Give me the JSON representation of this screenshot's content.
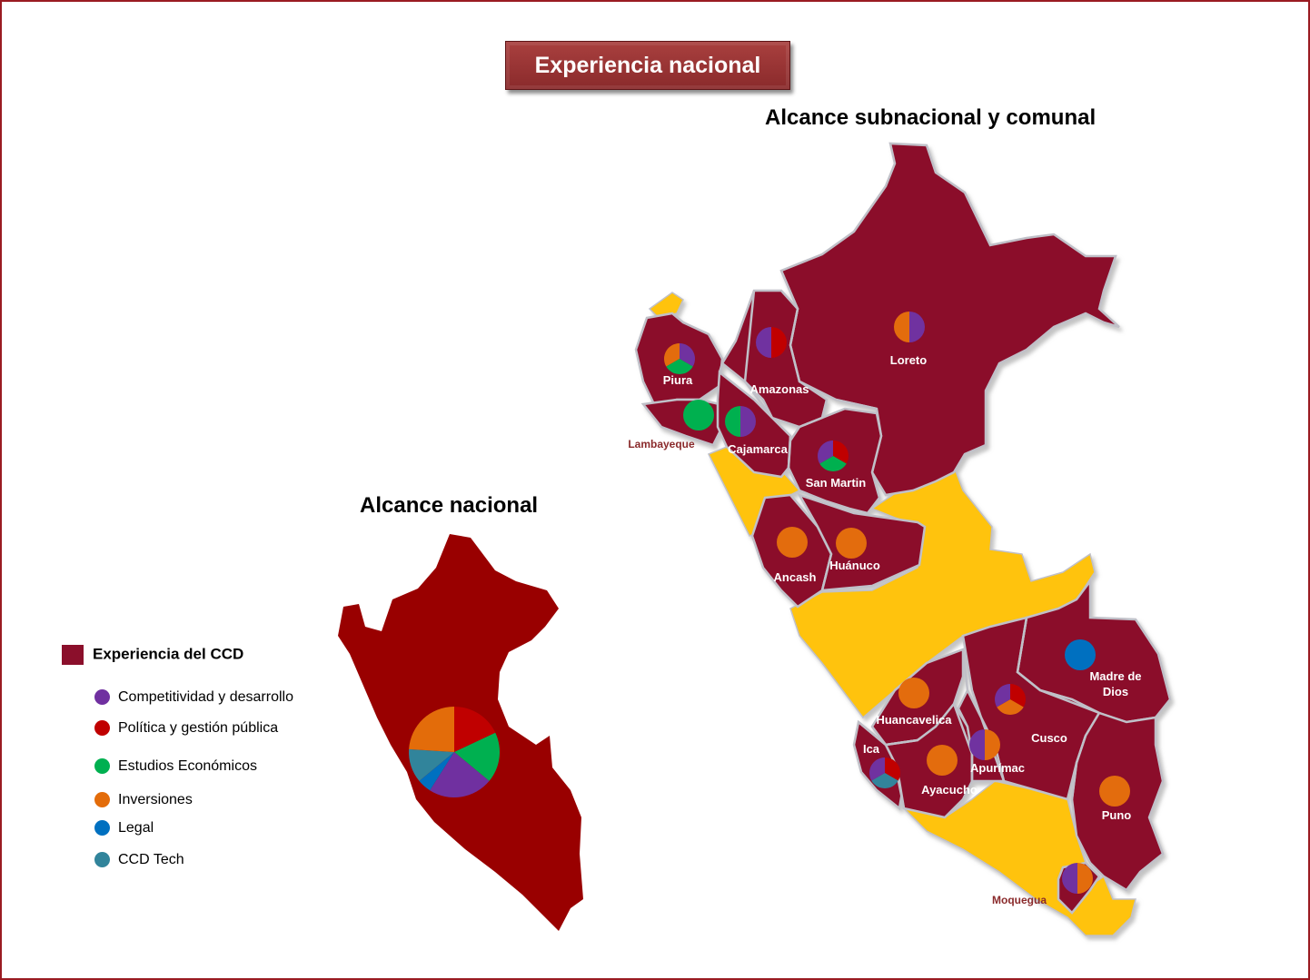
{
  "title": "Experiencia nacional",
  "heading_subnational": "Alcance subnacional y comunal",
  "heading_national": "Alcance nacional",
  "colors": {
    "ccd_region": "#8b0f2b",
    "other_region": "#ffc30a",
    "national_map": "#990000",
    "border": "#c0c0c8"
  },
  "legend": {
    "main_label": "Experiencia del CCD",
    "main_color": "#8b0f2b",
    "items": [
      {
        "label": "Competitividad y desarrollo",
        "color": "#7030a0"
      },
      {
        "label": "Política y gestión pública",
        "color": "#c00000"
      },
      {
        "label": "Estudios Económicos",
        "color": "#00b050"
      },
      {
        "label": "Inversiones",
        "color": "#e36c0a"
      },
      {
        "label": "Legal",
        "color": "#0070c0"
      },
      {
        "label": "CCD Tech",
        "color": "#31849b"
      }
    ]
  },
  "regions": [
    {
      "name": "Loreto",
      "areas": [
        "Competitividad y desarrollo",
        "Inversiones"
      ]
    },
    {
      "name": "Piura",
      "areas": [
        "Competitividad y desarrollo",
        "Estudios Económicos",
        "Inversiones"
      ]
    },
    {
      "name": "Amazonas",
      "areas": [
        "Política y gestión pública",
        "Competitividad y desarrollo"
      ]
    },
    {
      "name": "Lambayeque",
      "areas": [
        "Estudios Económicos"
      ]
    },
    {
      "name": "Cajamarca",
      "areas": [
        "Competitividad y desarrollo",
        "Estudios Económicos"
      ]
    },
    {
      "name": "San Martin",
      "areas": [
        "Política y gestión pública",
        "Estudios Económicos",
        "Competitividad y desarrollo"
      ]
    },
    {
      "name": "Ancash",
      "areas": [
        "Inversiones"
      ]
    },
    {
      "name": "Huánuco",
      "areas": [
        "Inversiones"
      ]
    },
    {
      "name": "Madre de Dios",
      "areas": [
        "Legal"
      ]
    },
    {
      "name": "Huancavelica",
      "areas": [
        "Inversiones"
      ]
    },
    {
      "name": "Cusco",
      "areas": [
        "Política y gestión pública",
        "Inversiones",
        "Competitividad y desarrollo"
      ]
    },
    {
      "name": "Ica",
      "areas": [
        "Política y gestión pública",
        "CCD Tech",
        "Competitividad y desarrollo"
      ]
    },
    {
      "name": "Ayacucho",
      "areas": [
        "Inversiones"
      ]
    },
    {
      "name": "Apurímac",
      "areas": [
        "Inversiones",
        "Competitividad y desarrollo"
      ]
    },
    {
      "name": "Puno",
      "areas": [
        "Inversiones"
      ]
    },
    {
      "name": "Moquegua",
      "areas": [
        "Inversiones",
        "Competitividad y desarrollo"
      ]
    }
  ],
  "national_pie": [
    {
      "area": "Política y gestión pública",
      "share": 0.18
    },
    {
      "area": "Estudios Económicos",
      "share": 0.18
    },
    {
      "area": "Competitividad y desarrollo",
      "share": 0.23
    },
    {
      "area": "Legal",
      "share": 0.05
    },
    {
      "area": "CCD Tech",
      "share": 0.12
    },
    {
      "area": "Inversiones",
      "share": 0.24
    }
  ]
}
